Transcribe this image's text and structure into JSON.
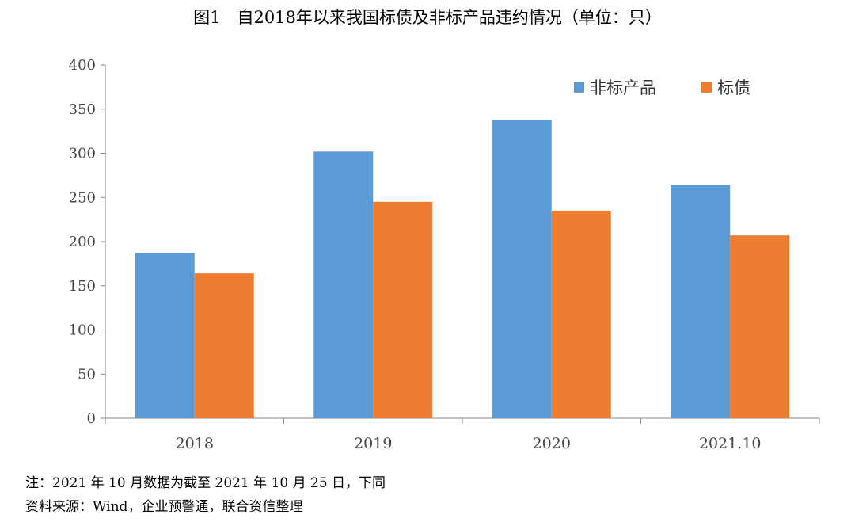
{
  "chart_data": {
    "type": "bar",
    "title": "图1　自2018年以来我国标债及非标产品违约情况（单位：只）",
    "categories": [
      "2018",
      "2019",
      "2020",
      "2021.10"
    ],
    "series": [
      {
        "name": "非标产品",
        "color": "#5B9BD5",
        "values": [
          187,
          302,
          338,
          264
        ]
      },
      {
        "name": "标债",
        "color": "#ED7D31",
        "values": [
          164,
          245,
          235,
          207
        ]
      }
    ],
    "ylim": [
      0,
      400
    ],
    "yticks": [
      0,
      50,
      100,
      150,
      200,
      250,
      300,
      350,
      400
    ],
    "grid": false,
    "legend": "top-right"
  },
  "notes": {
    "note": "注：2021 年 10 月数据为截至 2021 年 10 月 25 日，下同",
    "source": "资料来源：Wind，企业预警通，联合资信整理"
  }
}
